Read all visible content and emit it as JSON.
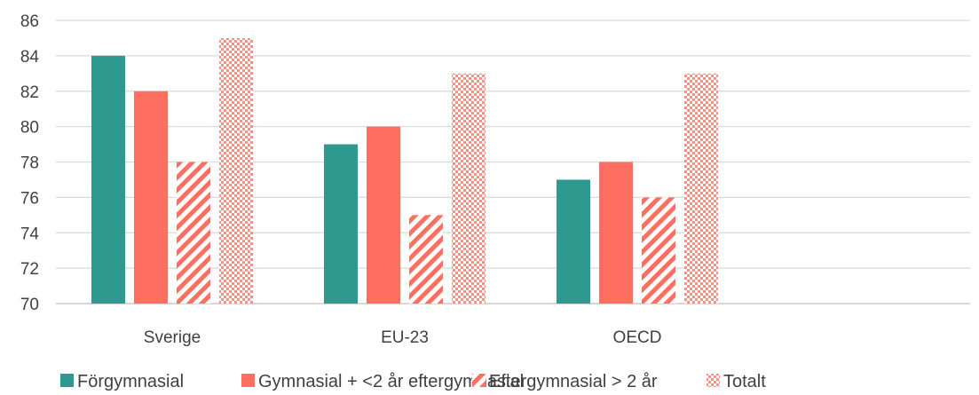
{
  "chart_data": {
    "type": "bar",
    "title": "",
    "xlabel": "",
    "ylabel": "",
    "categories": [
      "Sverige",
      "EU-23",
      "OECD"
    ],
    "series": [
      {
        "name": "Förgymnasial",
        "values": [
          84,
          79,
          77
        ],
        "color": "#2e9a8f",
        "pattern": "solid"
      },
      {
        "name": "Gymnasial + <2 år eftergymnasial",
        "values": [
          82,
          80,
          78
        ],
        "color": "#ff6f61",
        "pattern": "solid"
      },
      {
        "name": "Eftergymnasial > 2 år",
        "values": [
          78,
          75,
          76
        ],
        "color": "#ff6f61",
        "pattern": "diagonal-stripes"
      },
      {
        "name": "Totalt",
        "values": [
          85,
          83,
          83
        ],
        "color": "#ff6f61",
        "pattern": "checker"
      }
    ],
    "ylim": [
      70,
      86
    ],
    "yticks": [
      "70",
      "72",
      "74",
      "76",
      "78",
      "80",
      "82",
      "84",
      "86"
    ],
    "grid": true,
    "legend_position": "bottom"
  }
}
